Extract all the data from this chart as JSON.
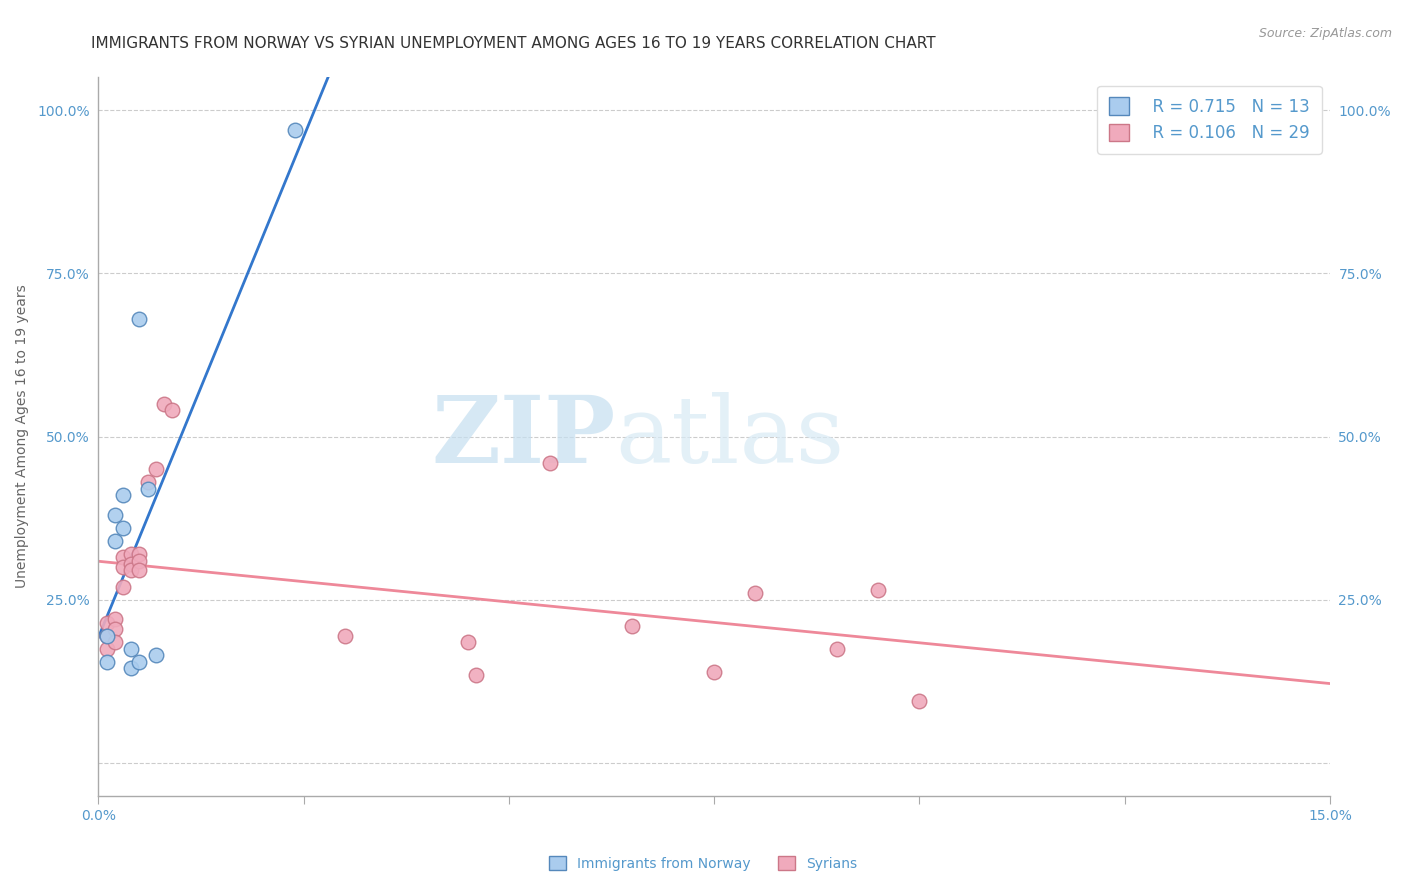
{
  "title": "IMMIGRANTS FROM NORWAY VS SYRIAN UNEMPLOYMENT AMONG AGES 16 TO 19 YEARS CORRELATION CHART",
  "source": "Source: ZipAtlas.com",
  "xlabel": "",
  "ylabel": "Unemployment Among Ages 16 to 19 years",
  "xlim": [
    0.0,
    0.15
  ],
  "ylim": [
    -0.05,
    1.05
  ],
  "xticks": [
    0.0,
    0.025,
    0.05,
    0.075,
    0.1,
    0.125,
    0.15
  ],
  "xticklabels": [
    "0.0%",
    "",
    "",
    "",
    "",
    "",
    "15.0%"
  ],
  "yticks": [
    0.0,
    0.25,
    0.5,
    0.75,
    1.0
  ],
  "yticklabels": [
    "",
    "25.0%",
    "50.0%",
    "75.0%",
    "100.0%"
  ],
  "norway_x": [
    0.001,
    0.001,
    0.002,
    0.002,
    0.003,
    0.003,
    0.004,
    0.004,
    0.005,
    0.005,
    0.006,
    0.007,
    0.024
  ],
  "norway_y": [
    0.195,
    0.155,
    0.38,
    0.34,
    0.41,
    0.36,
    0.145,
    0.175,
    0.155,
    0.68,
    0.42,
    0.165,
    0.97
  ],
  "syrian_x": [
    0.001,
    0.001,
    0.001,
    0.002,
    0.002,
    0.002,
    0.003,
    0.003,
    0.003,
    0.004,
    0.004,
    0.004,
    0.005,
    0.005,
    0.005,
    0.006,
    0.007,
    0.008,
    0.009,
    0.03,
    0.045,
    0.046,
    0.055,
    0.065,
    0.075,
    0.08,
    0.09,
    0.095,
    0.1
  ],
  "syrian_y": [
    0.215,
    0.195,
    0.175,
    0.22,
    0.205,
    0.185,
    0.315,
    0.3,
    0.27,
    0.32,
    0.305,
    0.295,
    0.32,
    0.31,
    0.295,
    0.43,
    0.45,
    0.55,
    0.54,
    0.195,
    0.185,
    0.135,
    0.46,
    0.21,
    0.14,
    0.26,
    0.175,
    0.265,
    0.095
  ],
  "norway_color": "#aaccee",
  "norway_edge_color": "#5588bb",
  "syrian_color": "#f0aabc",
  "syrian_edge_color": "#cc7788",
  "norway_line_color": "#3377cc",
  "syrian_line_color": "#ee8899",
  "norway_R": "0.715",
  "norway_N": "13",
  "syrian_R": "0.106",
  "syrian_N": "29",
  "watermark_zip": "ZIP",
  "watermark_atlas": "atlas",
  "marker_size": 110,
  "grid_color": "#cccccc",
  "grid_linestyle": "--",
  "background_color": "#ffffff",
  "title_fontsize": 11,
  "axis_label_fontsize": 10,
  "tick_fontsize": 10,
  "legend_fontsize": 12,
  "source_fontsize": 9,
  "tick_color": "#5599cc",
  "label_color": "#666666"
}
